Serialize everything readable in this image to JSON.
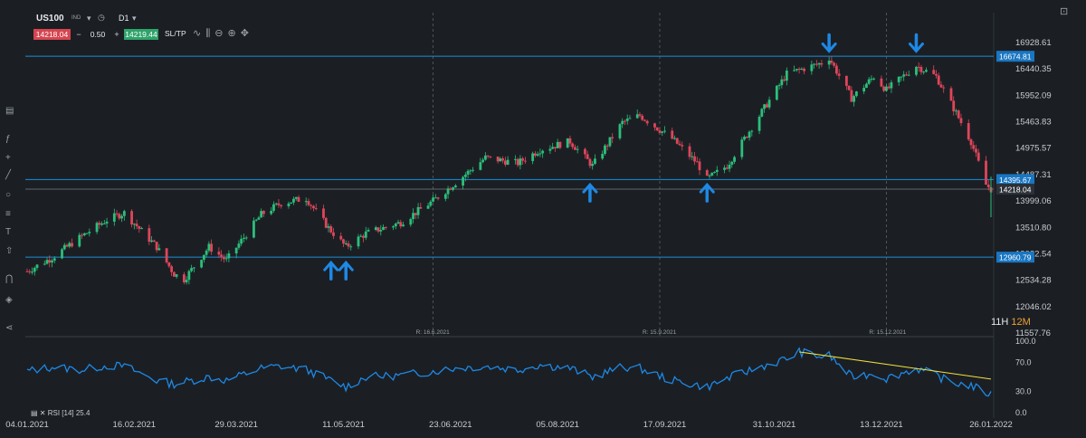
{
  "toolbar": {
    "symbol": "US100",
    "exchange": "IND",
    "timeframe": "D1",
    "bid": "14218.04",
    "minus": "−",
    "quantity": "0.50",
    "plus": "+",
    "ask": "14219.44",
    "sltp": "SL/TP"
  },
  "colors": {
    "up": "#2bbf7a",
    "down": "#e0455a",
    "rsi": "#1e88e5",
    "level": "#1b8fd6",
    "trend": "#f2e13b",
    "arrow": "#1e88e5"
  },
  "chart_data": [
    {
      "type": "candlestick",
      "symbol": "US100",
      "timeframe": "D1",
      "ylim": [
        11557.76,
        16928.61
      ],
      "y_ticks": [
        "16928.61",
        "16440.35",
        "15952.09",
        "15463.83",
        "14975.57",
        "14487.31",
        "13999.06",
        "13510.80",
        "13022.54",
        "12534.28",
        "12046.02",
        "11557.76"
      ],
      "x_ticks": [
        "04.01.2021",
        "16.02.2021",
        "29.03.2021",
        "11.05.2021",
        "23.06.2021",
        "05.08.2021",
        "17.09.2021",
        "31.10.2021",
        "13.12.2021",
        "26.01.2022"
      ],
      "horizontal_levels": [
        16674.81,
        14395.67,
        12960.79
      ],
      "current_price": 14218.04,
      "level_labels": [
        "16674.81",
        "14395.67",
        "14218.04",
        "12960.79"
      ],
      "rollover_markers": [
        "R: 16.6.2021",
        "R: 15.9.2021",
        "R: 15.12.2021"
      ],
      "countdown": {
        "hours": "11H",
        "minutes": "12M"
      },
      "arrows": [
        {
          "direction": "up",
          "date": "06.05.2021",
          "price": 12960
        },
        {
          "direction": "up",
          "date": "12.05.2021",
          "price": 12960
        },
        {
          "direction": "up",
          "date": "18.08.2021",
          "price": 14400
        },
        {
          "direction": "up",
          "date": "04.10.2021",
          "price": 14400
        },
        {
          "direction": "down",
          "date": "22.11.2021",
          "price": 16670
        },
        {
          "direction": "down",
          "date": "27.12.2021",
          "price": 16670
        }
      ],
      "close_trend": [
        [
          "04.01.2021",
          12700
        ],
        [
          "14.01.2021",
          12950
        ],
        [
          "26.01.2021",
          13350
        ],
        [
          "05.02.2021",
          13650
        ],
        [
          "12.02.2021",
          13780
        ],
        [
          "25.02.2021",
          13150
        ],
        [
          "04.03.2021",
          12650
        ],
        [
          "08.03.2021",
          12550
        ],
        [
          "18.03.2021",
          13150
        ],
        [
          "25.03.2021",
          12900
        ],
        [
          "08.04.2021",
          13750
        ],
        [
          "16.04.2021",
          13960
        ],
        [
          "26.04.2021",
          14050
        ],
        [
          "05.05.2021",
          13500
        ],
        [
          "12.05.2021",
          13150
        ],
        [
          "20.05.2021",
          13400
        ],
        [
          "03.06.2021",
          13600
        ],
        [
          "16.06.2021",
          14000
        ],
        [
          "24.06.2021",
          14300
        ],
        [
          "07.07.2021",
          14800
        ],
        [
          "20.07.2021",
          14700
        ],
        [
          "29.07.2021",
          14950
        ],
        [
          "10.08.2021",
          15100
        ],
        [
          "19.08.2021",
          14650
        ],
        [
          "31.08.2021",
          15450
        ],
        [
          "07.09.2021",
          15580
        ],
        [
          "20.09.2021",
          15150
        ],
        [
          "30.09.2021",
          14700
        ],
        [
          "04.10.2021",
          14400
        ],
        [
          "12.10.2021",
          14650
        ],
        [
          "26.10.2021",
          15650
        ],
        [
          "05.11.2021",
          16350
        ],
        [
          "19.11.2021",
          16550
        ],
        [
          "22.11.2021",
          16650
        ],
        [
          "01.12.2021",
          15900
        ],
        [
          "10.12.2021",
          16300
        ],
        [
          "15.12.2021",
          16050
        ],
        [
          "27.12.2021",
          16500
        ],
        [
          "04.01.2022",
          16300
        ],
        [
          "10.01.2022",
          15800
        ],
        [
          "18.01.2022",
          15100
        ],
        [
          "24.01.2022",
          14300
        ],
        [
          "26.01.2022",
          14218
        ]
      ]
    },
    {
      "type": "line",
      "name": "RSI [14] 25.4",
      "ylim": [
        0,
        100
      ],
      "y_ticks": [
        "100.0",
        "70.0",
        "30.0",
        "0.0"
      ],
      "values": [
        [
          "04.01.2021",
          58
        ],
        [
          "14.01.2021",
          64
        ],
        [
          "26.01.2021",
          60
        ],
        [
          "05.02.2021",
          66
        ],
        [
          "12.02.2021",
          65
        ],
        [
          "25.02.2021",
          45
        ],
        [
          "04.03.2021",
          40
        ],
        [
          "18.03.2021",
          50
        ],
        [
          "25.03.2021",
          45
        ],
        [
          "08.04.2021",
          62
        ],
        [
          "16.04.2021",
          65
        ],
        [
          "26.04.2021",
          60
        ],
        [
          "12.05.2021",
          36
        ],
        [
          "20.05.2021",
          50
        ],
        [
          "03.06.2021",
          52
        ],
        [
          "16.06.2021",
          58
        ],
        [
          "24.06.2021",
          62
        ],
        [
          "07.07.2021",
          65
        ],
        [
          "20.07.2021",
          60
        ],
        [
          "29.07.2021",
          67
        ],
        [
          "10.08.2021",
          62
        ],
        [
          "19.08.2021",
          50
        ],
        [
          "31.08.2021",
          64
        ],
        [
          "07.09.2021",
          62
        ],
        [
          "20.09.2021",
          45
        ],
        [
          "04.10.2021",
          36
        ],
        [
          "12.10.2021",
          48
        ],
        [
          "26.10.2021",
          65
        ],
        [
          "05.11.2021",
          75
        ],
        [
          "10.11.2021",
          85
        ],
        [
          "19.11.2021",
          78
        ],
        [
          "22.11.2021",
          80
        ],
        [
          "01.12.2021",
          50
        ],
        [
          "10.12.2021",
          55
        ],
        [
          "15.12.2021",
          48
        ],
        [
          "27.12.2021",
          62
        ],
        [
          "04.01.2022",
          52
        ],
        [
          "10.01.2022",
          42
        ],
        [
          "18.01.2022",
          38
        ],
        [
          "24.01.2022",
          28
        ],
        [
          "26.01.2022",
          25.4
        ]
      ],
      "trendline": [
        [
          "10.11.2021",
          85
        ],
        [
          "26.01.2022",
          47
        ]
      ]
    }
  ]
}
